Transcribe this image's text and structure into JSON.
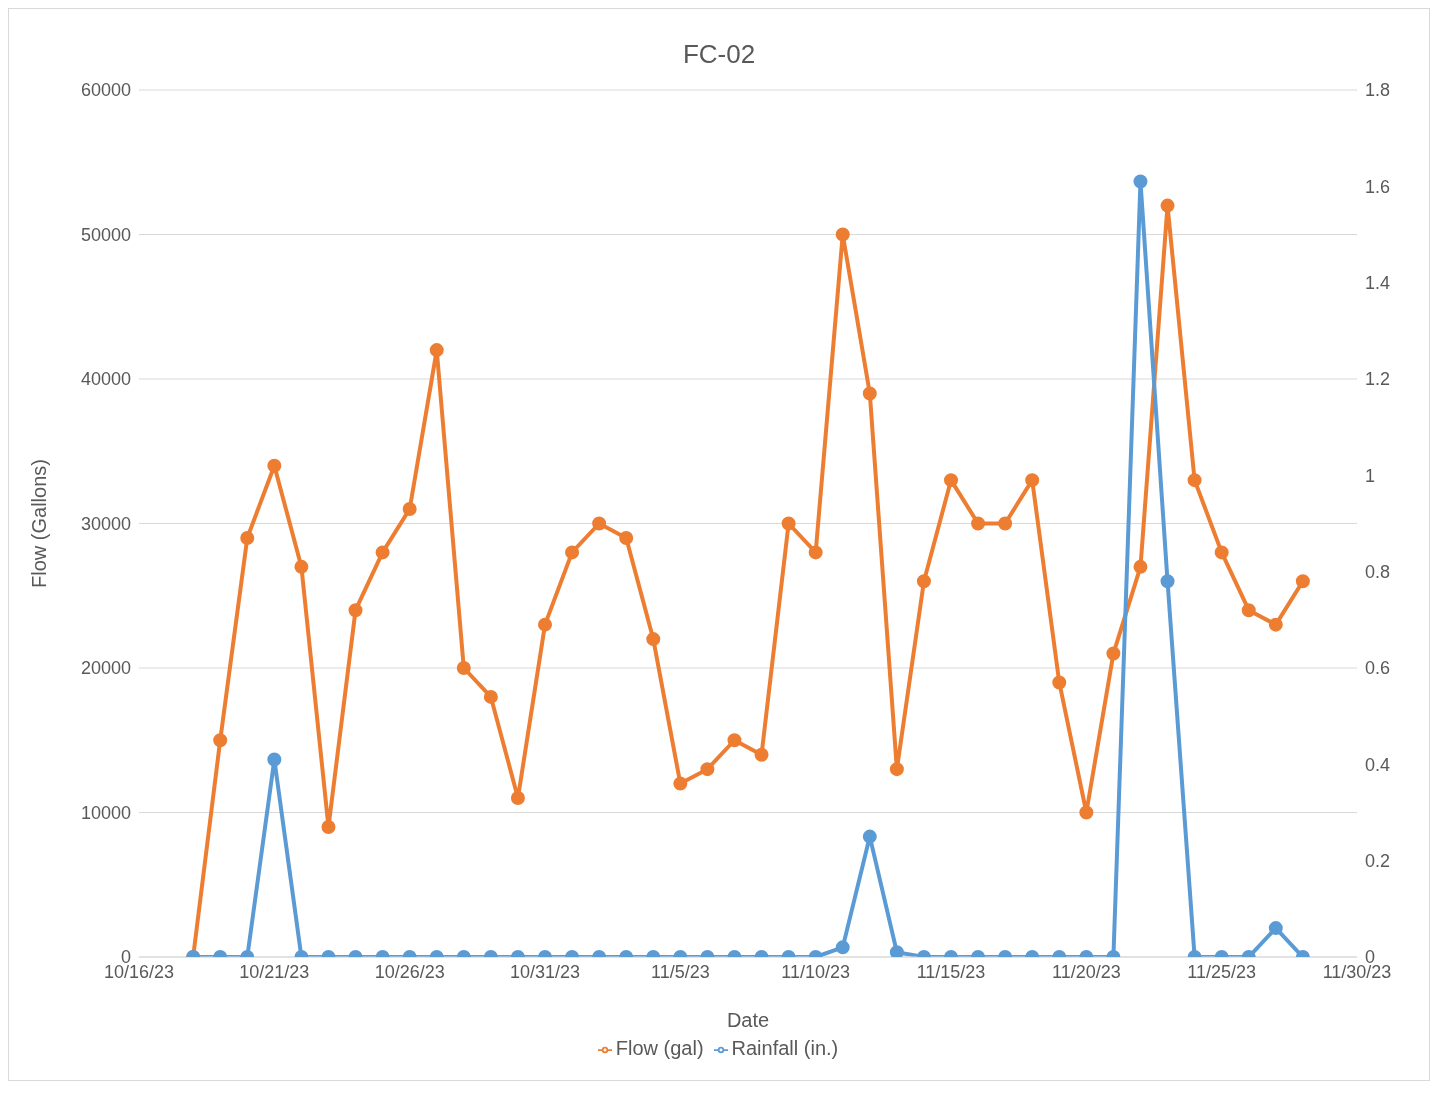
{
  "chart_data": {
    "type": "line",
    "title": "FC-02",
    "xlabel": "Date",
    "ylabel": "Flow (Gallons)",
    "x": [
      "--10-18",
      "--10-19",
      "--10-20",
      "--10-21",
      "--10-22",
      "--10-23",
      "--10-24",
      "--10-25",
      "--10-26",
      "--10-27",
      "--10-28",
      "--10-29",
      "--10-30",
      "--10-31",
      "--11-01",
      "--11-02",
      "--11-03",
      "--11-04",
      "--11-05",
      "--11-06",
      "--11-07",
      "--11-08",
      "--11-09",
      "--11-10",
      "--11-11",
      "--11-12",
      "--11-13",
      "--11-14",
      "--11-15",
      "--11-16",
      "--11-17",
      "--11-18",
      "--11-19",
      "--11-20",
      "--11-21",
      "--11-22",
      "--11-23",
      "--11-24",
      "--11-25",
      "--11-26",
      "--11-27",
      "--11-28"
    ],
    "series": [
      {
        "name": "Flow (gal)",
        "color": "#ed7d31",
        "values": [
          0,
          15000,
          29000,
          34000,
          27000,
          9000,
          24000,
          28000,
          31000,
          42000,
          20000,
          18000,
          11000,
          23000,
          28000,
          30000,
          29000,
          22000,
          12000,
          13000,
          15000,
          14000,
          30000,
          28000,
          50000,
          39000,
          13000,
          26000,
          33000,
          30000,
          30000,
          33000,
          19000,
          10000,
          21000,
          27000,
          52000,
          33000,
          28000,
          24000,
          23000,
          26000
        ]
      },
      {
        "name": "Rainfall (in.)",
        "color": "#5b9bd5",
        "axis": "y2",
        "values": [
          0,
          0,
          0,
          0.41,
          0,
          0,
          0,
          0,
          0,
          0,
          0,
          0,
          0,
          0,
          0,
          0,
          0,
          0,
          0,
          0,
          0,
          0,
          0,
          0,
          0.02,
          0.25,
          0.01,
          0,
          0,
          0,
          0,
          0,
          0,
          0,
          0,
          1.61,
          0.78,
          0,
          0,
          0,
          0.06,
          0
        ]
      }
    ],
    "xlim": [
      "--10-16",
      "--11-30"
    ],
    "xticks": [
      {
        "value": "--10-16",
        "label": "10/16/23"
      },
      {
        "value": "--10-21",
        "label": "10/21/23"
      },
      {
        "value": "--10-26",
        "label": "10/26/23"
      },
      {
        "value": "--10-31",
        "label": "10/31/23"
      },
      {
        "value": "--11-05",
        "label": "11/5/23"
      },
      {
        "value": "--11-10",
        "label": "11/10/23"
      },
      {
        "value": "--11-15",
        "label": "11/15/23"
      },
      {
        "value": "--11-20",
        "label": "11/20/23"
      },
      {
        "value": "--11-25",
        "label": "11/25/23"
      },
      {
        "value": "--11-30",
        "label": "11/30/23"
      }
    ],
    "ylim": [
      0,
      60000
    ],
    "yticks": [
      0,
      10000,
      20000,
      30000,
      40000,
      50000,
      60000
    ],
    "y2lim": [
      0,
      1.8
    ],
    "y2ticks": [
      0,
      0.2,
      0.4,
      0.6,
      0.8,
      1,
      1.2,
      1.4,
      1.6,
      1.8
    ],
    "grid": "y",
    "legend": "bottom",
    "marker": "circle",
    "line_style": "solid"
  }
}
